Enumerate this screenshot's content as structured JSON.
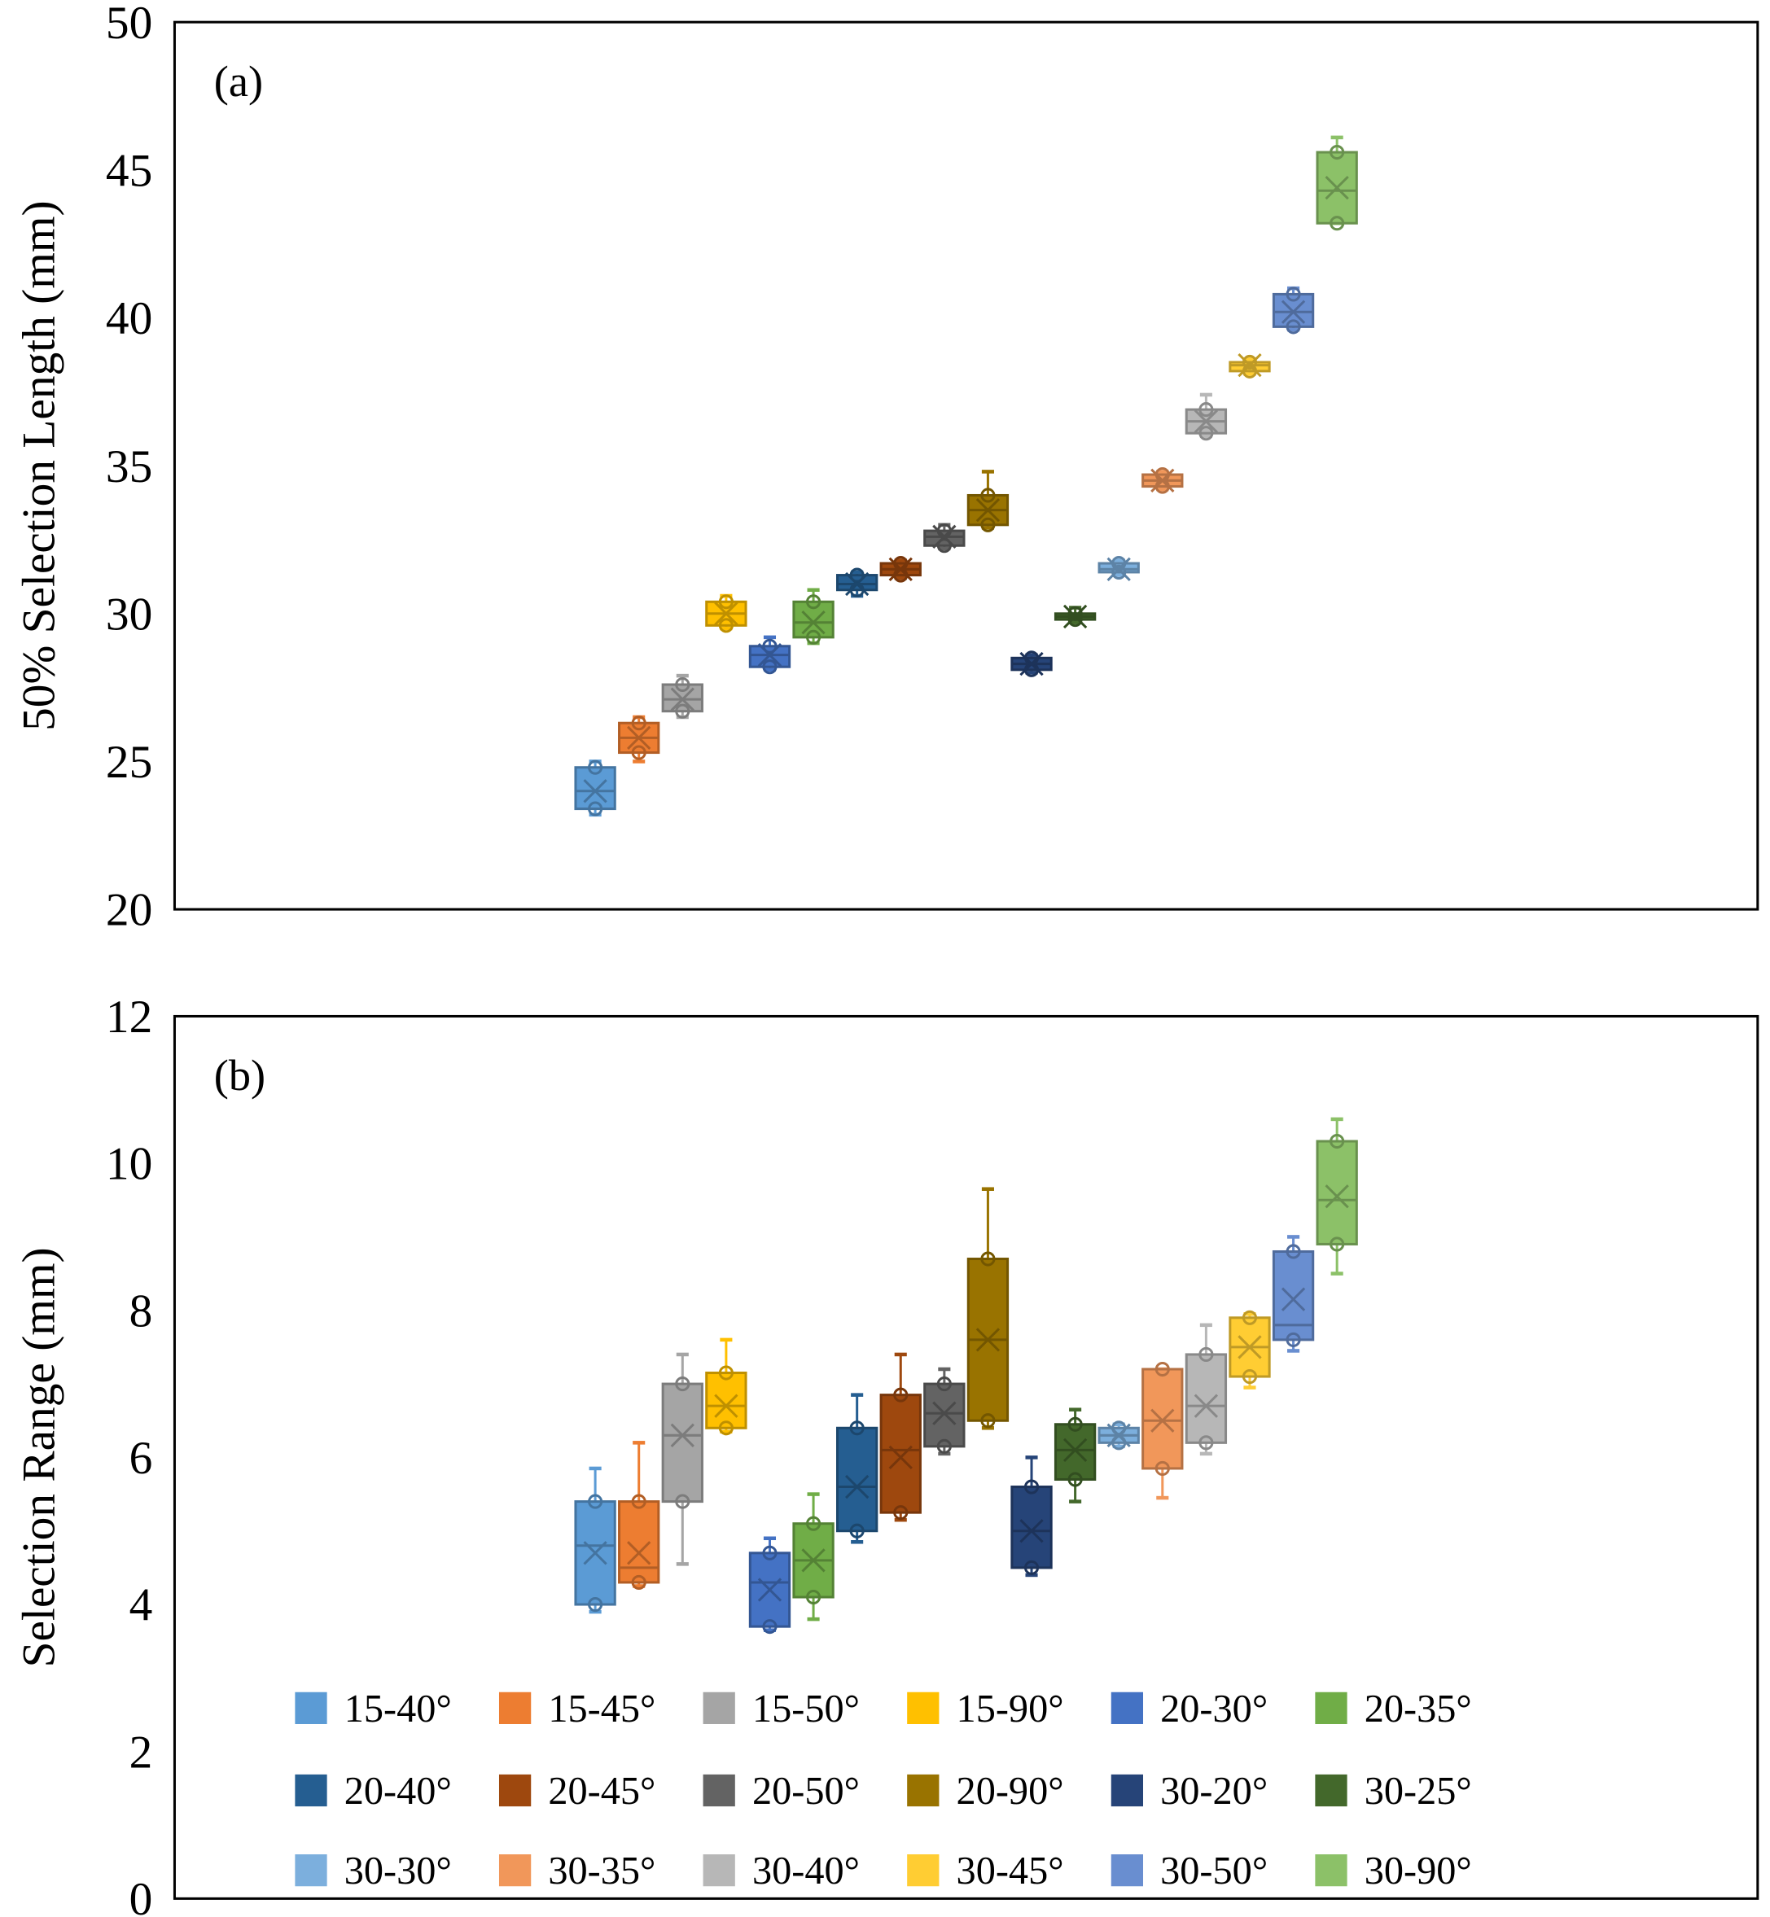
{
  "chart_data": [
    {
      "type": "box",
      "panel_label": "(a)",
      "ylabel": "50% Selection Length  (mm)",
      "ylim": [
        20,
        50
      ],
      "yticks": [
        "20",
        "25",
        "30",
        "35",
        "40",
        "45",
        "50"
      ],
      "grid": false,
      "stat_order": [
        "min",
        "q1",
        "median",
        "q3",
        "max",
        "mean"
      ],
      "series": [
        {
          "name": "15-40°",
          "color": "#5B9BD5",
          "stats": [
            23.2,
            23.4,
            24.0,
            24.8,
            25.0,
            24.0
          ]
        },
        {
          "name": "15-45°",
          "color": "#ED7D31",
          "stats": [
            25.0,
            25.3,
            25.8,
            26.3,
            26.5,
            25.8
          ]
        },
        {
          "name": "15-50°",
          "color": "#A5A5A5",
          "stats": [
            26.5,
            26.7,
            27.1,
            27.6,
            27.9,
            27.1
          ]
        },
        {
          "name": "15-90°",
          "color": "#FFC000",
          "stats": [
            29.5,
            29.6,
            30.0,
            30.4,
            30.6,
            30.0
          ]
        },
        {
          "name": "20-30°",
          "color": "#4472C4",
          "stats": [
            28.1,
            28.2,
            28.6,
            28.9,
            29.2,
            28.6
          ]
        },
        {
          "name": "20-35°",
          "color": "#70AD47",
          "stats": [
            29.0,
            29.2,
            29.7,
            30.4,
            30.8,
            29.7
          ]
        },
        {
          "name": "20-40°",
          "color": "#255E91",
          "stats": [
            30.6,
            30.8,
            31.0,
            31.3,
            31.4,
            31.0
          ]
        },
        {
          "name": "20-45°",
          "color": "#9E480E",
          "stats": [
            31.2,
            31.3,
            31.5,
            31.7,
            31.8,
            31.5
          ]
        },
        {
          "name": "20-50°",
          "color": "#636363",
          "stats": [
            32.2,
            32.3,
            32.6,
            32.8,
            33.0,
            32.6
          ]
        },
        {
          "name": "20-90°",
          "color": "#997300",
          "stats": [
            32.9,
            33.0,
            33.5,
            34.0,
            34.8,
            33.5
          ]
        },
        {
          "name": "30-20°",
          "color": "#264478",
          "stats": [
            28.0,
            28.1,
            28.3,
            28.5,
            28.6,
            28.3
          ]
        },
        {
          "name": "30-25°",
          "color": "#43682B",
          "stats": [
            29.7,
            29.8,
            29.9,
            30.0,
            30.2,
            29.9
          ]
        },
        {
          "name": "30-30°",
          "color": "#7CAFDD",
          "stats": [
            31.3,
            31.4,
            31.5,
            31.7,
            31.8,
            31.5
          ]
        },
        {
          "name": "30-35°",
          "color": "#F1975A",
          "stats": [
            34.2,
            34.3,
            34.5,
            34.7,
            34.8,
            34.5
          ]
        },
        {
          "name": "30-40°",
          "color": "#B7B7B7",
          "stats": [
            36.0,
            36.1,
            36.5,
            36.9,
            37.4,
            36.5
          ]
        },
        {
          "name": "30-45°",
          "color": "#FFCD33",
          "stats": [
            38.1,
            38.2,
            38.4,
            38.5,
            38.6,
            38.4
          ]
        },
        {
          "name": "30-50°",
          "color": "#698ED0",
          "stats": [
            39.6,
            39.7,
            40.2,
            40.8,
            41.0,
            40.2
          ]
        },
        {
          "name": "30-90°",
          "color": "#8CC168",
          "stats": [
            43.2,
            43.2,
            44.3,
            45.6,
            46.1,
            44.4
          ]
        }
      ]
    },
    {
      "type": "box",
      "panel_label": "(b)",
      "ylabel": "Selection Range (mm)",
      "ylim": [
        0,
        12
      ],
      "yticks": [
        "0",
        "2",
        "4",
        "6",
        "8",
        "10",
        "12"
      ],
      "grid": false,
      "legend_placement": "bottom-inside",
      "stat_order": [
        "min",
        "q1",
        "median",
        "q3",
        "max",
        "mean"
      ],
      "series": [
        {
          "name": "15-40°",
          "color": "#5B9BD5",
          "stats": [
            3.9,
            4.0,
            4.8,
            5.4,
            5.85,
            4.7
          ]
        },
        {
          "name": "15-45°",
          "color": "#ED7D31",
          "stats": [
            4.25,
            4.3,
            4.5,
            5.4,
            6.2,
            4.7
          ]
        },
        {
          "name": "15-50°",
          "color": "#A5A5A5",
          "stats": [
            4.55,
            5.4,
            6.3,
            7.0,
            7.4,
            6.3
          ]
        },
        {
          "name": "15-90°",
          "color": "#FFC000",
          "stats": [
            6.35,
            6.4,
            6.7,
            7.15,
            7.6,
            6.7
          ]
        },
        {
          "name": "20-30°",
          "color": "#4472C4",
          "stats": [
            3.65,
            3.7,
            4.3,
            4.7,
            4.9,
            4.2
          ]
        },
        {
          "name": "20-35°",
          "color": "#70AD47",
          "stats": [
            3.8,
            4.1,
            4.6,
            5.1,
            5.5,
            4.6
          ]
        },
        {
          "name": "20-40°",
          "color": "#255E91",
          "stats": [
            4.85,
            5.0,
            5.6,
            6.4,
            6.85,
            5.6
          ]
        },
        {
          "name": "20-45°",
          "color": "#9E480E",
          "stats": [
            5.15,
            5.25,
            6.1,
            6.85,
            7.4,
            6.0
          ]
        },
        {
          "name": "20-50°",
          "color": "#636363",
          "stats": [
            6.05,
            6.15,
            6.6,
            7.0,
            7.2,
            6.6
          ]
        },
        {
          "name": "20-90°",
          "color": "#997300",
          "stats": [
            6.4,
            6.5,
            7.6,
            8.7,
            9.65,
            7.6
          ]
        },
        {
          "name": "30-20°",
          "color": "#264478",
          "stats": [
            4.4,
            4.5,
            5.0,
            5.6,
            6.0,
            5.0
          ]
        },
        {
          "name": "30-25°",
          "color": "#43682B",
          "stats": [
            5.4,
            5.7,
            6.1,
            6.45,
            6.65,
            6.1
          ]
        },
        {
          "name": "30-30°",
          "color": "#7CAFDD",
          "stats": [
            6.15,
            6.2,
            6.3,
            6.4,
            6.45,
            6.3
          ]
        },
        {
          "name": "30-35°",
          "color": "#F1975A",
          "stats": [
            5.45,
            5.85,
            6.5,
            7.2,
            7.2,
            6.5
          ]
        },
        {
          "name": "30-40°",
          "color": "#B7B7B7",
          "stats": [
            6.05,
            6.2,
            6.7,
            7.4,
            7.8,
            6.7
          ]
        },
        {
          "name": "30-45°",
          "color": "#FFCD33",
          "stats": [
            6.95,
            7.1,
            7.5,
            7.9,
            7.95,
            7.5
          ]
        },
        {
          "name": "30-50°",
          "color": "#698ED0",
          "stats": [
            7.45,
            7.6,
            7.8,
            8.8,
            9.0,
            8.15
          ]
        },
        {
          "name": "30-90°",
          "color": "#8CC168",
          "stats": [
            8.5,
            8.9,
            9.5,
            10.3,
            10.6,
            9.55
          ]
        }
      ]
    }
  ]
}
